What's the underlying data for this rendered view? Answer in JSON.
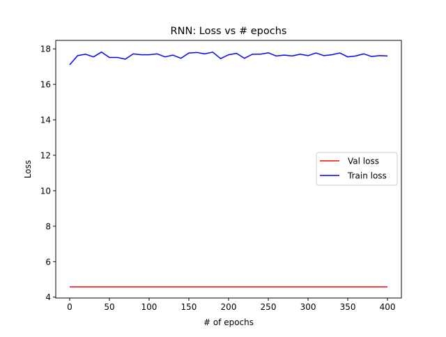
{
  "chart_data": {
    "type": "line",
    "title": "RNN: Loss vs # epochs",
    "xlabel": "# of epochs",
    "ylabel": "Loss",
    "xlim": [
      -17.5,
      417.5
    ],
    "ylim": [
      3.95,
      18.48
    ],
    "xticks": [
      0,
      50,
      100,
      150,
      200,
      250,
      300,
      350,
      400
    ],
    "yticks": [
      4,
      6,
      8,
      10,
      12,
      14,
      16,
      18
    ],
    "grid": false,
    "legend_position": "center-right",
    "x": [
      0,
      10,
      20,
      30,
      40,
      50,
      60,
      70,
      80,
      90,
      100,
      110,
      120,
      130,
      140,
      150,
      160,
      170,
      180,
      190,
      200,
      210,
      220,
      230,
      240,
      250,
      260,
      270,
      280,
      290,
      300,
      310,
      320,
      330,
      340,
      350,
      360,
      370,
      380,
      390,
      400
    ],
    "series": [
      {
        "name": "Val loss",
        "color": "#ff0000",
        "values": [
          4.58,
          4.58,
          4.58,
          4.58,
          4.58,
          4.58,
          4.58,
          4.58,
          4.58,
          4.58,
          4.58,
          4.58,
          4.58,
          4.58,
          4.58,
          4.58,
          4.58,
          4.58,
          4.58,
          4.58,
          4.58,
          4.58,
          4.58,
          4.58,
          4.58,
          4.58,
          4.58,
          4.58,
          4.58,
          4.58,
          4.58,
          4.58,
          4.58,
          4.58,
          4.58,
          4.58,
          4.58,
          4.58,
          4.58,
          4.58,
          4.58
        ]
      },
      {
        "name": "Train loss",
        "color": "#0000ff",
        "values": [
          17.1,
          17.62,
          17.7,
          17.55,
          17.82,
          17.52,
          17.52,
          17.42,
          17.72,
          17.67,
          17.67,
          17.72,
          17.55,
          17.65,
          17.47,
          17.77,
          17.8,
          17.72,
          17.82,
          17.45,
          17.67,
          17.75,
          17.47,
          17.7,
          17.7,
          17.78,
          17.6,
          17.65,
          17.6,
          17.7,
          17.62,
          17.77,
          17.62,
          17.67,
          17.77,
          17.55,
          17.6,
          17.72,
          17.57,
          17.62,
          17.6
        ]
      }
    ]
  }
}
